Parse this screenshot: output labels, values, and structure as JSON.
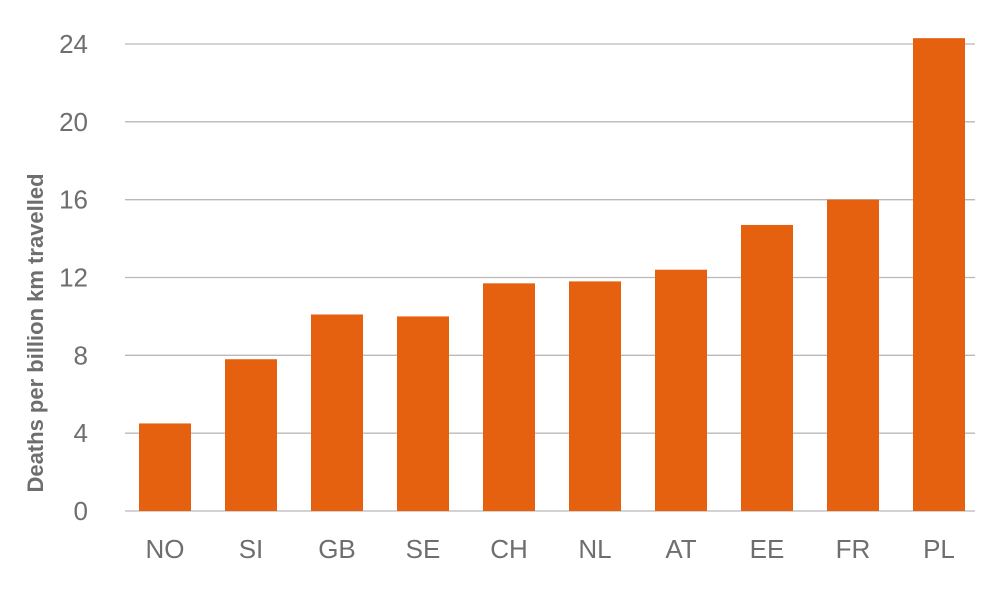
{
  "chart_data": {
    "type": "bar",
    "title": "",
    "xlabel": "",
    "ylabel": "Deaths per billion km travelled",
    "categories": [
      "NO",
      "SI",
      "GB",
      "SE",
      "CH",
      "NL",
      "AT",
      "EE",
      "FR",
      "PL"
    ],
    "values": [
      4.5,
      7.8,
      10.1,
      10.0,
      11.7,
      11.8,
      12.4,
      14.7,
      16.0,
      24.3
    ],
    "ylim": [
      0,
      24
    ],
    "yticks": [
      "0",
      "4",
      "8",
      "12",
      "16",
      "20",
      "24"
    ],
    "grid": true,
    "legend": "none",
    "bar_color": "#e5600f"
  }
}
